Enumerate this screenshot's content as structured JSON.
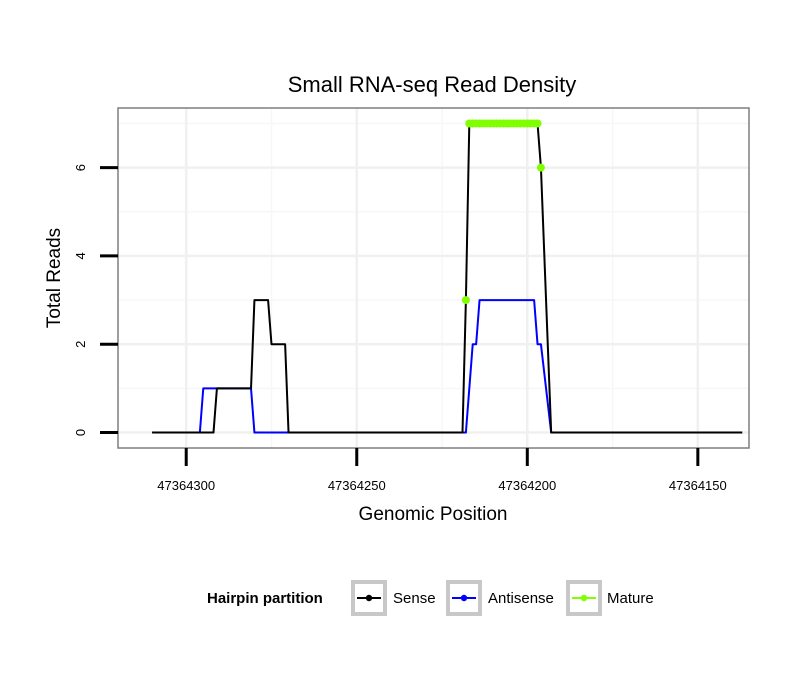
{
  "chart_data": {
    "type": "line",
    "title": "Small RNA-seq Read Density",
    "xlabel": "Genomic Position",
    "ylabel": "Total Reads",
    "xlim": [
      47364320,
      47364135
    ],
    "x_reversed": true,
    "ylim": [
      -0.35,
      7.35
    ],
    "xticks": [
      47364300,
      47364250,
      47364200,
      47364150
    ],
    "xtick_labels": [
      "47364300",
      "47364250",
      "47364200",
      "47364150"
    ],
    "yticks": [
      0,
      2,
      4,
      6
    ],
    "ytick_labels": [
      "0",
      "2",
      "4",
      "6"
    ],
    "grid": true,
    "series": [
      {
        "name": "Sense",
        "color": "#000000",
        "style": "line",
        "points": [
          [
            47364310,
            0
          ],
          [
            47364308,
            0
          ],
          [
            47364306,
            0
          ],
          [
            47364304,
            0
          ],
          [
            47364302,
            0
          ],
          [
            47364300,
            0
          ],
          [
            47364298,
            0
          ],
          [
            47364296,
            0
          ],
          [
            47364294,
            0
          ],
          [
            47364292,
            0
          ],
          [
            47364291,
            1
          ],
          [
            47364281,
            1
          ],
          [
            47364280,
            3
          ],
          [
            47364276,
            3
          ],
          [
            47364275,
            2
          ],
          [
            47364271,
            2
          ],
          [
            47364270,
            0
          ],
          [
            47364240,
            0
          ],
          [
            47364219,
            0
          ],
          [
            47364218,
            3
          ],
          [
            47364217,
            7
          ],
          [
            47364197,
            7
          ],
          [
            47364196,
            6
          ],
          [
            47364193,
            0
          ],
          [
            47364162,
            0
          ],
          [
            47364137,
            0
          ]
        ]
      },
      {
        "name": "Antisense",
        "color": "#0000ff",
        "style": "line",
        "points": [
          [
            47364310,
            0
          ],
          [
            47364296,
            0
          ],
          [
            47364295,
            1
          ],
          [
            47364281,
            1
          ],
          [
            47364280,
            0
          ],
          [
            47364270,
            0
          ],
          [
            47364240,
            0
          ],
          [
            47364218,
            0
          ],
          [
            47364216,
            2
          ],
          [
            47364215,
            2
          ],
          [
            47364214,
            3
          ],
          [
            47364198,
            3
          ],
          [
            47364197,
            2
          ],
          [
            47364196,
            2
          ],
          [
            47364193,
            0
          ],
          [
            47364137,
            0
          ]
        ]
      },
      {
        "name": "Mature",
        "color": "#7fff00",
        "style": "points",
        "points": [
          [
            47364218,
            3
          ],
          [
            47364217,
            7
          ],
          [
            47364216,
            7
          ],
          [
            47364215,
            7
          ],
          [
            47364214,
            7
          ],
          [
            47364213,
            7
          ],
          [
            47364212,
            7
          ],
          [
            47364211,
            7
          ],
          [
            47364210,
            7
          ],
          [
            47364209,
            7
          ],
          [
            47364208,
            7
          ],
          [
            47364207,
            7
          ],
          [
            47364206,
            7
          ],
          [
            47364205,
            7
          ],
          [
            47364204,
            7
          ],
          [
            47364203,
            7
          ],
          [
            47364202,
            7
          ],
          [
            47364201,
            7
          ],
          [
            47364200,
            7
          ],
          [
            47364199,
            7
          ],
          [
            47364198,
            7
          ],
          [
            47364197,
            7
          ],
          [
            47364196,
            6
          ]
        ]
      }
    ],
    "legend": {
      "title": "Hairpin partition",
      "placement": "bottom",
      "entries": [
        "Sense",
        "Antisense",
        "Mature"
      ]
    }
  }
}
